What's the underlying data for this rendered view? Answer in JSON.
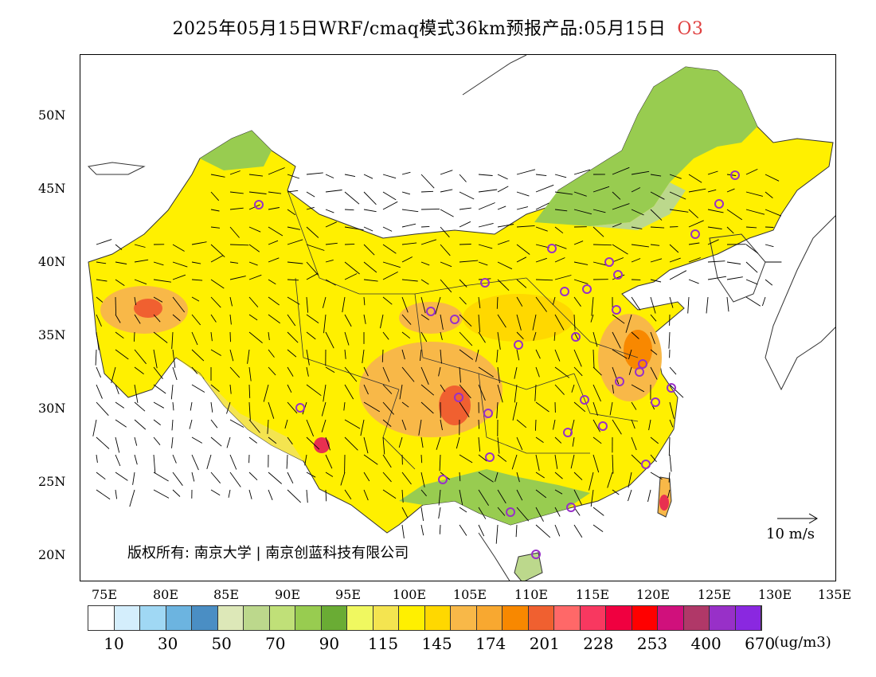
{
  "title": {
    "main": "2025年05月15日WRF/cmaq模式36km预报产品:05月15日",
    "species": "O3"
  },
  "axes": {
    "lat_labels": [
      "50N",
      "45N",
      "40N",
      "35N",
      "30N",
      "25N",
      "20N"
    ],
    "lon_labels": [
      "75E",
      "80E",
      "85E",
      "90E",
      "95E",
      "100E",
      "105E",
      "110E",
      "115E",
      "120E",
      "125E",
      "130E",
      "135E"
    ]
  },
  "copyright": "版权所有: 南京大学 | 南京创蓝科技有限公司",
  "wind_reference": "10 m/s",
  "legend": {
    "colors": [
      "#ffffff",
      "#d4eefc",
      "#a0d8f4",
      "#6cb4e0",
      "#4a8ec4",
      "#dde8b8",
      "#bcd88c",
      "#c0e078",
      "#98cc50",
      "#6aac34",
      "#f0f860",
      "#f4e450",
      "#fff000",
      "#ffd800",
      "#f8b848",
      "#f8a830",
      "#f88800",
      "#f06030",
      "#ff6868",
      "#f83860",
      "#f00040",
      "#ff0000",
      "#d0107c",
      "#b03868",
      "#9830c8",
      "#8a28e0"
    ],
    "labels": [
      "10",
      "30",
      "50",
      "70",
      "90",
      "115",
      "145",
      "174",
      "201",
      "228",
      "253",
      "400",
      "670"
    ],
    "unit": "(ug/m3)"
  },
  "map_colors": {
    "yellow": "#fff000",
    "gold": "#ffd800",
    "orange": "#f8b848",
    "deep_orange": "#f88800",
    "red": "#f06030",
    "green": "#98cc50",
    "light_green": "#bcd88c",
    "city_marker": "#9830c8"
  }
}
